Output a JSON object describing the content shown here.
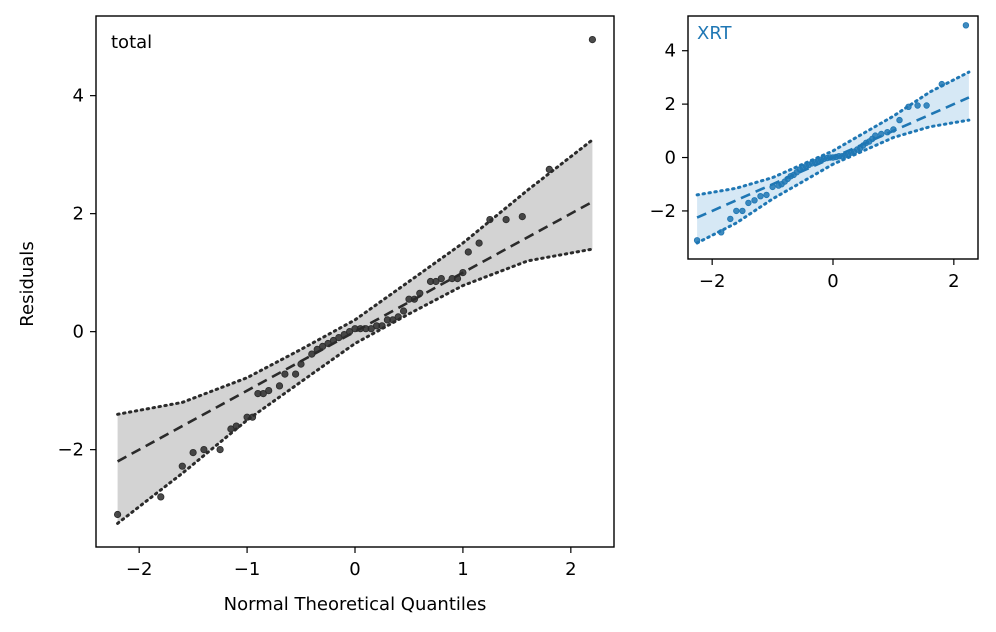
{
  "colors": {
    "total_marker": "#2b2b2b",
    "total_band": "#d3d3d3",
    "xrt_marker": "#1f77b4",
    "xrt_band": "#d6e8f5",
    "xrt_title": "#1f77b4"
  },
  "chart_data": [
    {
      "type": "scatter",
      "panel": "total",
      "title": "total",
      "xlabel": "Normal Theoretical Quantiles",
      "ylabel": "Residuals",
      "xlim": [
        -2.4,
        2.4
      ],
      "ylim": [
        -3.65,
        5.35
      ],
      "xticks": [
        -2,
        -1,
        0,
        1,
        2
      ],
      "xtick_labels": [
        "−2",
        "−1",
        "0",
        "1",
        "2"
      ],
      "yticks": [
        -2,
        0,
        2,
        4
      ],
      "ytick_labels": [
        "−2",
        "0",
        "2",
        "4"
      ],
      "reference_line": {
        "slope": 1.0,
        "intercept": 0.0,
        "x_range": [
          -2.2,
          2.2
        ],
        "style": "dashed"
      },
      "confidence_band": {
        "x": [
          -2.2,
          -1.6,
          -1.0,
          -0.5,
          0.0,
          0.5,
          1.0,
          1.6,
          2.2
        ],
        "lower": [
          -3.25,
          -2.4,
          -1.5,
          -0.85,
          -0.2,
          0.3,
          0.78,
          1.2,
          1.4
        ],
        "upper": [
          -1.4,
          -1.2,
          -0.78,
          -0.3,
          0.2,
          0.85,
          1.5,
          2.4,
          3.25
        ]
      },
      "points": {
        "x": [
          -2.2,
          -1.8,
          -1.6,
          -1.5,
          -1.4,
          -1.25,
          -1.15,
          -1.1,
          -1.0,
          -0.95,
          -0.9,
          -0.85,
          -0.8,
          -0.7,
          -0.65,
          -0.55,
          -0.5,
          -0.4,
          -0.35,
          -0.3,
          -0.25,
          -0.2,
          -0.15,
          -0.1,
          -0.05,
          0.0,
          0.05,
          0.1,
          0.15,
          0.2,
          0.25,
          0.3,
          0.35,
          0.4,
          0.45,
          0.5,
          0.55,
          0.6,
          0.7,
          0.75,
          0.8,
          0.9,
          0.95,
          1.0,
          1.05,
          1.15,
          1.25,
          1.4,
          1.55,
          1.8,
          2.2
        ],
        "y": [
          -3.1,
          -2.8,
          -2.28,
          -2.05,
          -2.0,
          -2.0,
          -1.65,
          -1.6,
          -1.45,
          -1.45,
          -1.05,
          -1.05,
          -1.0,
          -0.92,
          -0.72,
          -0.72,
          -0.55,
          -0.38,
          -0.3,
          -0.25,
          -0.2,
          -0.15,
          -0.1,
          -0.05,
          0.0,
          0.05,
          0.05,
          0.05,
          0.05,
          0.1,
          0.1,
          0.2,
          0.2,
          0.25,
          0.35,
          0.55,
          0.55,
          0.65,
          0.85,
          0.85,
          0.9,
          0.9,
          0.9,
          1.0,
          1.35,
          1.5,
          1.9,
          1.9,
          1.95,
          2.75,
          4.95
        ]
      }
    },
    {
      "type": "scatter",
      "panel": "XRT",
      "title": "XRT",
      "xlabel": "",
      "ylabel": "",
      "xlim": [
        -2.4,
        2.4
      ],
      "ylim": [
        -3.8,
        5.3
      ],
      "xticks": [
        -2,
        0,
        2
      ],
      "xtick_labels": [
        "−2",
        "0",
        "2"
      ],
      "yticks": [
        -2,
        0,
        2,
        4
      ],
      "ytick_labels": [
        "−2",
        "0",
        "2",
        "4"
      ],
      "reference_line": {
        "slope": 1.0,
        "intercept": 0.0,
        "x_range": [
          -2.25,
          2.25
        ],
        "style": "dashed"
      },
      "confidence_band": {
        "x": [
          -2.25,
          -1.6,
          -1.0,
          -0.5,
          0.0,
          0.5,
          1.0,
          1.6,
          2.25
        ],
        "lower": [
          -3.2,
          -2.45,
          -1.55,
          -0.9,
          -0.25,
          0.25,
          0.75,
          1.15,
          1.4
        ],
        "upper": [
          -1.4,
          -1.15,
          -0.75,
          -0.25,
          0.25,
          0.9,
          1.55,
          2.45,
          3.2
        ]
      },
      "points": {
        "x": [
          -2.25,
          -1.85,
          -1.7,
          -1.6,
          -1.5,
          -1.4,
          -1.3,
          -1.2,
          -1.1,
          -1.0,
          -0.9,
          -0.85,
          -0.8,
          -0.75,
          -0.7,
          -0.65,
          -0.6,
          -0.55,
          -0.5,
          -0.45,
          -0.4,
          -0.35,
          -0.3,
          -0.25,
          -0.2,
          -0.15,
          -0.1,
          -0.05,
          0.0,
          0.05,
          0.1,
          0.15,
          0.2,
          0.25,
          0.3,
          0.35,
          0.4,
          0.45,
          0.5,
          0.55,
          0.6,
          0.65,
          0.7,
          0.8,
          0.9,
          1.0,
          1.1,
          1.25,
          1.4,
          1.55,
          1.8,
          2.2
        ],
        "y": [
          -3.1,
          -2.8,
          -2.3,
          -2.0,
          -2.0,
          -1.7,
          -1.6,
          -1.45,
          -1.4,
          -1.1,
          -1.05,
          -1.0,
          -0.9,
          -0.8,
          -0.7,
          -0.65,
          -0.55,
          -0.45,
          -0.38,
          -0.32,
          -0.28,
          -0.22,
          -0.18,
          -0.12,
          -0.08,
          -0.05,
          -0.02,
          0.0,
          0.0,
          0.02,
          0.05,
          0.05,
          0.08,
          0.12,
          0.18,
          0.22,
          0.3,
          0.35,
          0.45,
          0.55,
          0.6,
          0.7,
          0.82,
          0.88,
          0.95,
          1.05,
          1.4,
          1.9,
          1.95,
          1.95,
          2.75,
          4.95
        ]
      }
    }
  ]
}
